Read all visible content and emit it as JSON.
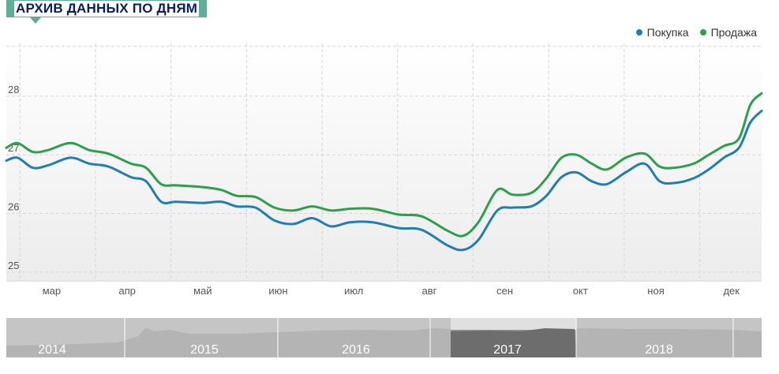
{
  "header": {
    "title": "АРХИВ ДАННЫХ ПО ДНЯМ"
  },
  "legend": {
    "buy_label": "Покупка",
    "sell_label": "Продажа",
    "placement": "top-right"
  },
  "colors": {
    "buy": "#1f7fb0",
    "sell": "#2ca04a",
    "accent": "#5eaf96",
    "title_text": "#0b1a6b"
  },
  "chart_data": {
    "type": "line",
    "grid": true,
    "ylim": [
      24.85,
      28.9
    ],
    "yticks": [
      25,
      26,
      27,
      28
    ],
    "xlim": [
      0,
      10
    ],
    "x_tick_labels": [
      {
        "label": "мар",
        "x": 0.6
      },
      {
        "label": "апр",
        "x": 1.6
      },
      {
        "label": "май",
        "x": 2.6
      },
      {
        "label": "июн",
        "x": 3.6
      },
      {
        "label": "июл",
        "x": 4.6
      },
      {
        "label": "авг",
        "x": 5.6
      },
      {
        "label": "сен",
        "x": 6.6
      },
      {
        "label": "окт",
        "x": 7.6
      },
      {
        "label": "ноя",
        "x": 8.6
      },
      {
        "label": "дек",
        "x": 9.6
      }
    ],
    "series": [
      {
        "name": "Покупка",
        "points": [
          [
            0.0,
            26.9
          ],
          [
            0.15,
            26.95
          ],
          [
            0.35,
            26.78
          ],
          [
            0.55,
            26.82
          ],
          [
            0.85,
            26.95
          ],
          [
            1.1,
            26.85
          ],
          [
            1.35,
            26.8
          ],
          [
            1.65,
            26.62
          ],
          [
            1.85,
            26.55
          ],
          [
            2.05,
            26.2
          ],
          [
            2.25,
            26.2
          ],
          [
            2.6,
            26.18
          ],
          [
            2.85,
            26.2
          ],
          [
            3.05,
            26.12
          ],
          [
            3.3,
            26.1
          ],
          [
            3.55,
            25.88
          ],
          [
            3.8,
            25.82
          ],
          [
            4.05,
            25.92
          ],
          [
            4.3,
            25.78
          ],
          [
            4.55,
            25.85
          ],
          [
            4.85,
            25.85
          ],
          [
            5.2,
            25.75
          ],
          [
            5.5,
            25.72
          ],
          [
            5.85,
            25.45
          ],
          [
            6.05,
            25.38
          ],
          [
            6.25,
            25.55
          ],
          [
            6.5,
            26.05
          ],
          [
            6.7,
            26.1
          ],
          [
            6.95,
            26.12
          ],
          [
            7.15,
            26.3
          ],
          [
            7.35,
            26.62
          ],
          [
            7.55,
            26.7
          ],
          [
            7.75,
            26.55
          ],
          [
            7.95,
            26.5
          ],
          [
            8.2,
            26.7
          ],
          [
            8.45,
            26.85
          ],
          [
            8.65,
            26.55
          ],
          [
            8.85,
            26.52
          ],
          [
            9.1,
            26.6
          ],
          [
            9.3,
            26.75
          ],
          [
            9.5,
            26.95
          ],
          [
            9.7,
            27.12
          ],
          [
            9.85,
            27.55
          ],
          [
            10.0,
            27.75
          ]
        ]
      },
      {
        "name": "Продажа",
        "points": [
          [
            0.0,
            27.12
          ],
          [
            0.15,
            27.2
          ],
          [
            0.35,
            27.05
          ],
          [
            0.55,
            27.08
          ],
          [
            0.85,
            27.2
          ],
          [
            1.1,
            27.08
          ],
          [
            1.35,
            27.02
          ],
          [
            1.65,
            26.85
          ],
          [
            1.85,
            26.78
          ],
          [
            2.05,
            26.5
          ],
          [
            2.25,
            26.48
          ],
          [
            2.6,
            26.45
          ],
          [
            2.85,
            26.4
          ],
          [
            3.05,
            26.3
          ],
          [
            3.3,
            26.28
          ],
          [
            3.55,
            26.1
          ],
          [
            3.8,
            26.05
          ],
          [
            4.05,
            26.12
          ],
          [
            4.3,
            26.05
          ],
          [
            4.55,
            26.08
          ],
          [
            4.85,
            26.08
          ],
          [
            5.2,
            25.98
          ],
          [
            5.5,
            25.95
          ],
          [
            5.85,
            25.7
          ],
          [
            6.05,
            25.62
          ],
          [
            6.25,
            25.85
          ],
          [
            6.5,
            26.4
          ],
          [
            6.7,
            26.32
          ],
          [
            6.95,
            26.35
          ],
          [
            7.15,
            26.6
          ],
          [
            7.35,
            26.95
          ],
          [
            7.55,
            27.0
          ],
          [
            7.75,
            26.85
          ],
          [
            7.95,
            26.75
          ],
          [
            8.2,
            26.95
          ],
          [
            8.45,
            27.02
          ],
          [
            8.65,
            26.8
          ],
          [
            8.85,
            26.78
          ],
          [
            9.1,
            26.85
          ],
          [
            9.3,
            27.0
          ],
          [
            9.5,
            27.15
          ],
          [
            9.7,
            27.28
          ],
          [
            9.85,
            27.85
          ],
          [
            10.0,
            28.05
          ]
        ]
      }
    ]
  },
  "navigator": {
    "years": [
      "2014",
      "2015",
      "2016",
      "2017",
      "2018"
    ],
    "selected_year": "2017"
  }
}
